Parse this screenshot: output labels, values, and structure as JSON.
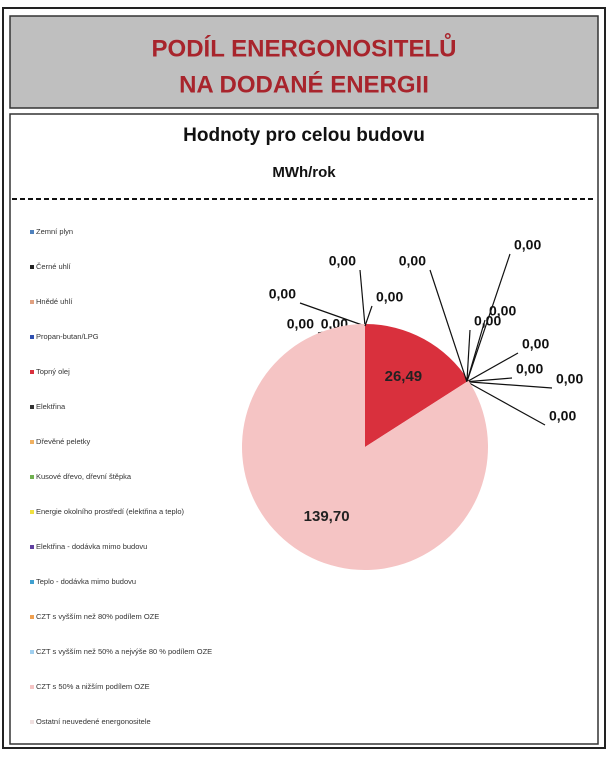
{
  "header": {
    "title_lines": [
      "PODÍL ENERGONOSITELŮ",
      "NA DODANÉ ENERGII"
    ]
  },
  "chart_data": {
    "type": "pie",
    "title": "Hodnoty pro celou budovu",
    "subtitle": "MWh/rok",
    "categories": [
      "Zemní plyn",
      "Černé uhlí",
      "Hnědé uhlí",
      "Propan-butan/LPG",
      "Topný olej",
      "Elektřina",
      "Dřevěné peletky",
      "Kusové dřevo, dřevní štěpka",
      "Energie okolního prostředí (elektřina a teplo)",
      "Elektřina - dodávka mimo budovu",
      "Teplo - dodávka mimo budovu",
      "CZT s vyšším než 80% podílem OZE",
      "CZT s vyšším než 50% a nejvýše 80 % podílem OZE",
      "CZT s 50% a nižším podílem OZE",
      "Ostatní neuvedené energonositele"
    ],
    "values": [
      0,
      0,
      0,
      0,
      26.49,
      0,
      0,
      0,
      0,
      0,
      0,
      0,
      0,
      139.7,
      0
    ],
    "value_labels": [
      "0,00",
      "0,00",
      "0,00",
      "0,00",
      "26,49",
      "0,00",
      "0,00",
      "0,00",
      "0,00",
      "0,00",
      "0,00",
      "0,00",
      "0,00",
      "139,70",
      "0,00"
    ],
    "colors": [
      "#4f81bd",
      "#222222",
      "#e0a080",
      "#3050b0",
      "#d9303d",
      "#333333",
      "#f0b060",
      "#70b050",
      "#f0e040",
      "#6040a0",
      "#40a0d0",
      "#f0a050",
      "#a0d0f0",
      "#f5c4c4",
      "#f0e0e0"
    ]
  }
}
